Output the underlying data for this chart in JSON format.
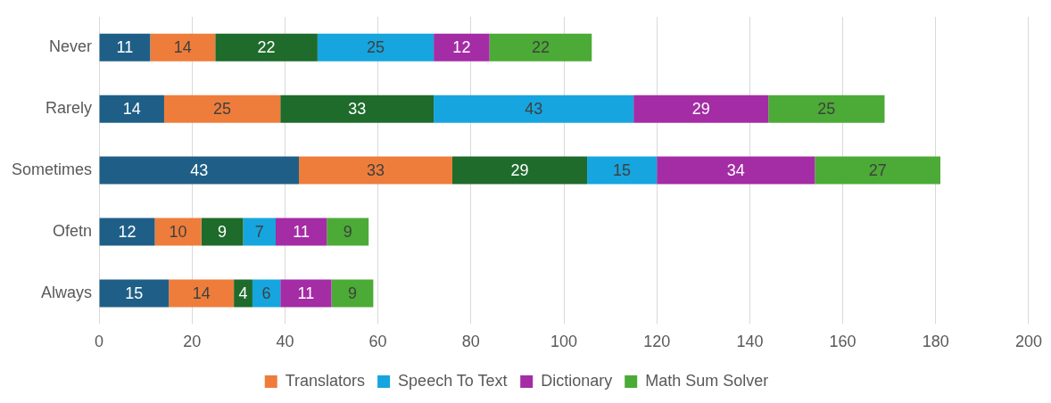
{
  "chart_data": {
    "type": "bar",
    "orientation": "horizontal",
    "stacked": true,
    "categories": [
      "Never",
      "Rarely",
      "Sometimes",
      "Ofetn",
      "Always"
    ],
    "series": [
      {
        "color": "#1f5f87",
        "values": [
          11,
          14,
          43,
          12,
          15
        ]
      },
      {
        "name": "Translators",
        "color": "#ee7d3b",
        "values": [
          14,
          25,
          33,
          10,
          14
        ]
      },
      {
        "color": "#1e6b2b",
        "values": [
          22,
          33,
          29,
          9,
          4
        ]
      },
      {
        "name": "Speech To Text",
        "color": "#16a5df",
        "values": [
          25,
          43,
          15,
          7,
          6
        ]
      },
      {
        "name": "Dictionary",
        "color": "#a42ca5",
        "values": [
          12,
          29,
          34,
          11,
          11
        ]
      },
      {
        "name": "Math Sum Solver",
        "color": "#4bab36",
        "values": [
          22,
          25,
          27,
          9,
          9
        ]
      }
    ],
    "xlim": [
      0,
      200
    ],
    "xticks": [
      0,
      20,
      40,
      60,
      80,
      100,
      120,
      140,
      160,
      180,
      200
    ],
    "grid": "x",
    "legend": "bottom",
    "data_labels": true
  }
}
